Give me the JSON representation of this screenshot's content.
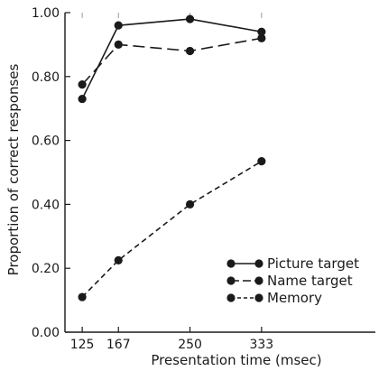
{
  "chart_data": {
    "type": "line",
    "title": "",
    "xlabel": "Presentation time (msec)",
    "ylabel": "Proportion of correct responses",
    "categories": [
      125,
      167,
      250,
      333
    ],
    "x_tick_labels": [
      "125",
      "167",
      "250",
      "333"
    ],
    "ylim": [
      0,
      1
    ],
    "y_ticks": [
      0,
      0.2,
      0.4,
      0.6,
      0.8,
      1.0
    ],
    "y_tick_labels": [
      "0.00",
      "0.20",
      "0.40",
      "0.60",
      "0.80",
      "1.00"
    ],
    "grid": false,
    "legend_position": "bottom-right",
    "series": [
      {
        "name": "Picture target",
        "values": [
          0.73,
          0.96,
          0.98,
          0.94
        ],
        "line_style": "solid",
        "color": "#1a1a1a"
      },
      {
        "name": "Name target",
        "values": [
          0.775,
          0.9,
          0.88,
          0.92
        ],
        "line_style": "long-dash",
        "color": "#1a1a1a"
      },
      {
        "name": "Memory",
        "values": [
          0.11,
          0.225,
          0.4,
          0.535
        ],
        "line_style": "short-dash",
        "color": "#1a1a1a"
      }
    ]
  }
}
